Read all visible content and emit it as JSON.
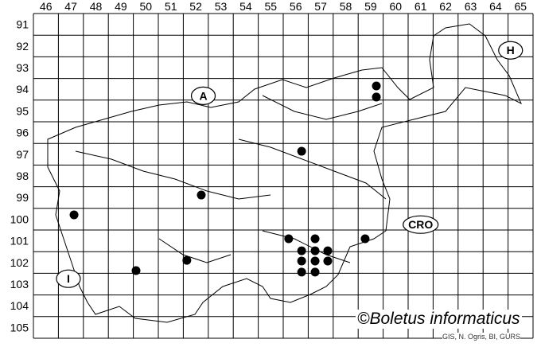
{
  "map": {
    "columns": [
      "46",
      "47",
      "48",
      "49",
      "50",
      "51",
      "52",
      "53",
      "54",
      "55",
      "56",
      "57",
      "58",
      "59",
      "60",
      "61",
      "62",
      "63",
      "64",
      "65"
    ],
    "rows": [
      "91",
      "92",
      "93",
      "94",
      "95",
      "96",
      "97",
      "98",
      "99",
      "100",
      "101",
      "102",
      "103",
      "104",
      "105"
    ],
    "country_labels": [
      {
        "text": "A",
        "col": 52.3,
        "row": 94.3
      },
      {
        "text": "H",
        "col": 64.6,
        "row": 92.2
      },
      {
        "text": "CRO",
        "col": 61.0,
        "row": 100.25
      },
      {
        "text": "I",
        "col": 46.9,
        "row": 102.75
      }
    ],
    "records": [
      {
        "col": 59.26,
        "row": 93.85
      },
      {
        "col": 59.26,
        "row": 94.36
      },
      {
        "col": 56.26,
        "row": 96.85
      },
      {
        "col": 52.23,
        "row": 98.86
      },
      {
        "col": 47.12,
        "row": 99.77
      },
      {
        "col": 55.74,
        "row": 100.87
      },
      {
        "col": 56.8,
        "row": 100.87
      },
      {
        "col": 58.81,
        "row": 100.87
      },
      {
        "col": 56.26,
        "row": 101.42
      },
      {
        "col": 56.8,
        "row": 101.42
      },
      {
        "col": 57.31,
        "row": 101.42
      },
      {
        "col": 51.65,
        "row": 101.86
      },
      {
        "col": 56.26,
        "row": 101.89
      },
      {
        "col": 56.8,
        "row": 101.89
      },
      {
        "col": 57.31,
        "row": 101.89
      },
      {
        "col": 49.61,
        "row": 102.33
      },
      {
        "col": 56.26,
        "row": 102.4
      },
      {
        "col": 56.8,
        "row": 102.4
      }
    ],
    "dot_color": "#000000",
    "credit": "©Boletus informaticus",
    "source": "GIS, N. Ogris, BI, GURS"
  }
}
